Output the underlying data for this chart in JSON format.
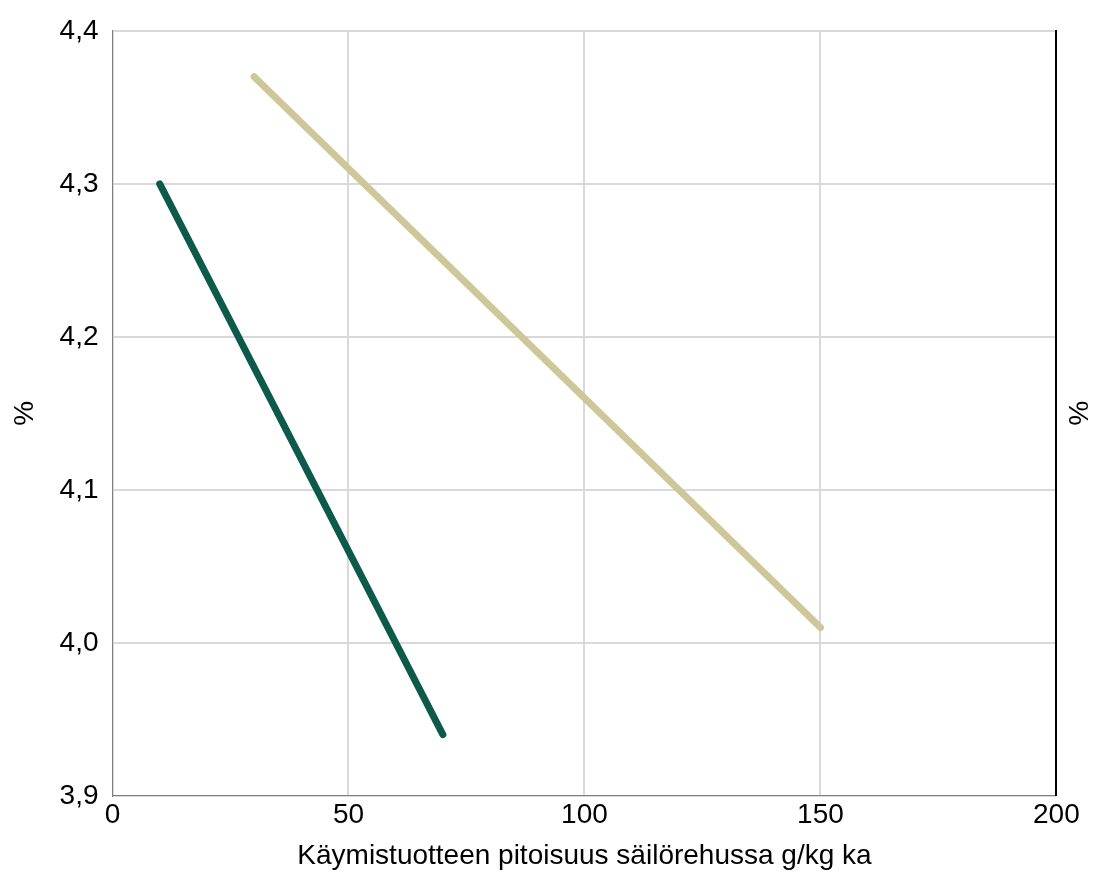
{
  "chart_data": {
    "type": "line",
    "xlabel": "Käymistuotteen pitoisuus säilörehussa g/kg ka",
    "ylabel": "%",
    "y2label": "%",
    "series": [
      {
        "color": "#0d5a4b",
        "x": [
          10,
          70
        ],
        "values": [
          4.3,
          3.94
        ]
      },
      {
        "color": "#cdc79a",
        "x": [
          30,
          150
        ],
        "values": [
          4.37,
          4.01
        ]
      }
    ],
    "xlim": [
      0,
      200
    ],
    "xticks": [
      0,
      50,
      100,
      150,
      200
    ],
    "ylim": [
      3.9,
      4.4
    ],
    "yticks": [
      {
        "value": 3.9,
        "label": "3,9"
      },
      {
        "value": 4.0,
        "label": "4,0"
      },
      {
        "value": 4.1,
        "label": "4,1"
      },
      {
        "value": 4.2,
        "label": "4,2"
      },
      {
        "value": 4.3,
        "label": "4,3"
      },
      {
        "value": 4.4,
        "label": "4,4"
      }
    ],
    "grid": true,
    "legend": false,
    "marker": "none",
    "line_style": "solid"
  }
}
